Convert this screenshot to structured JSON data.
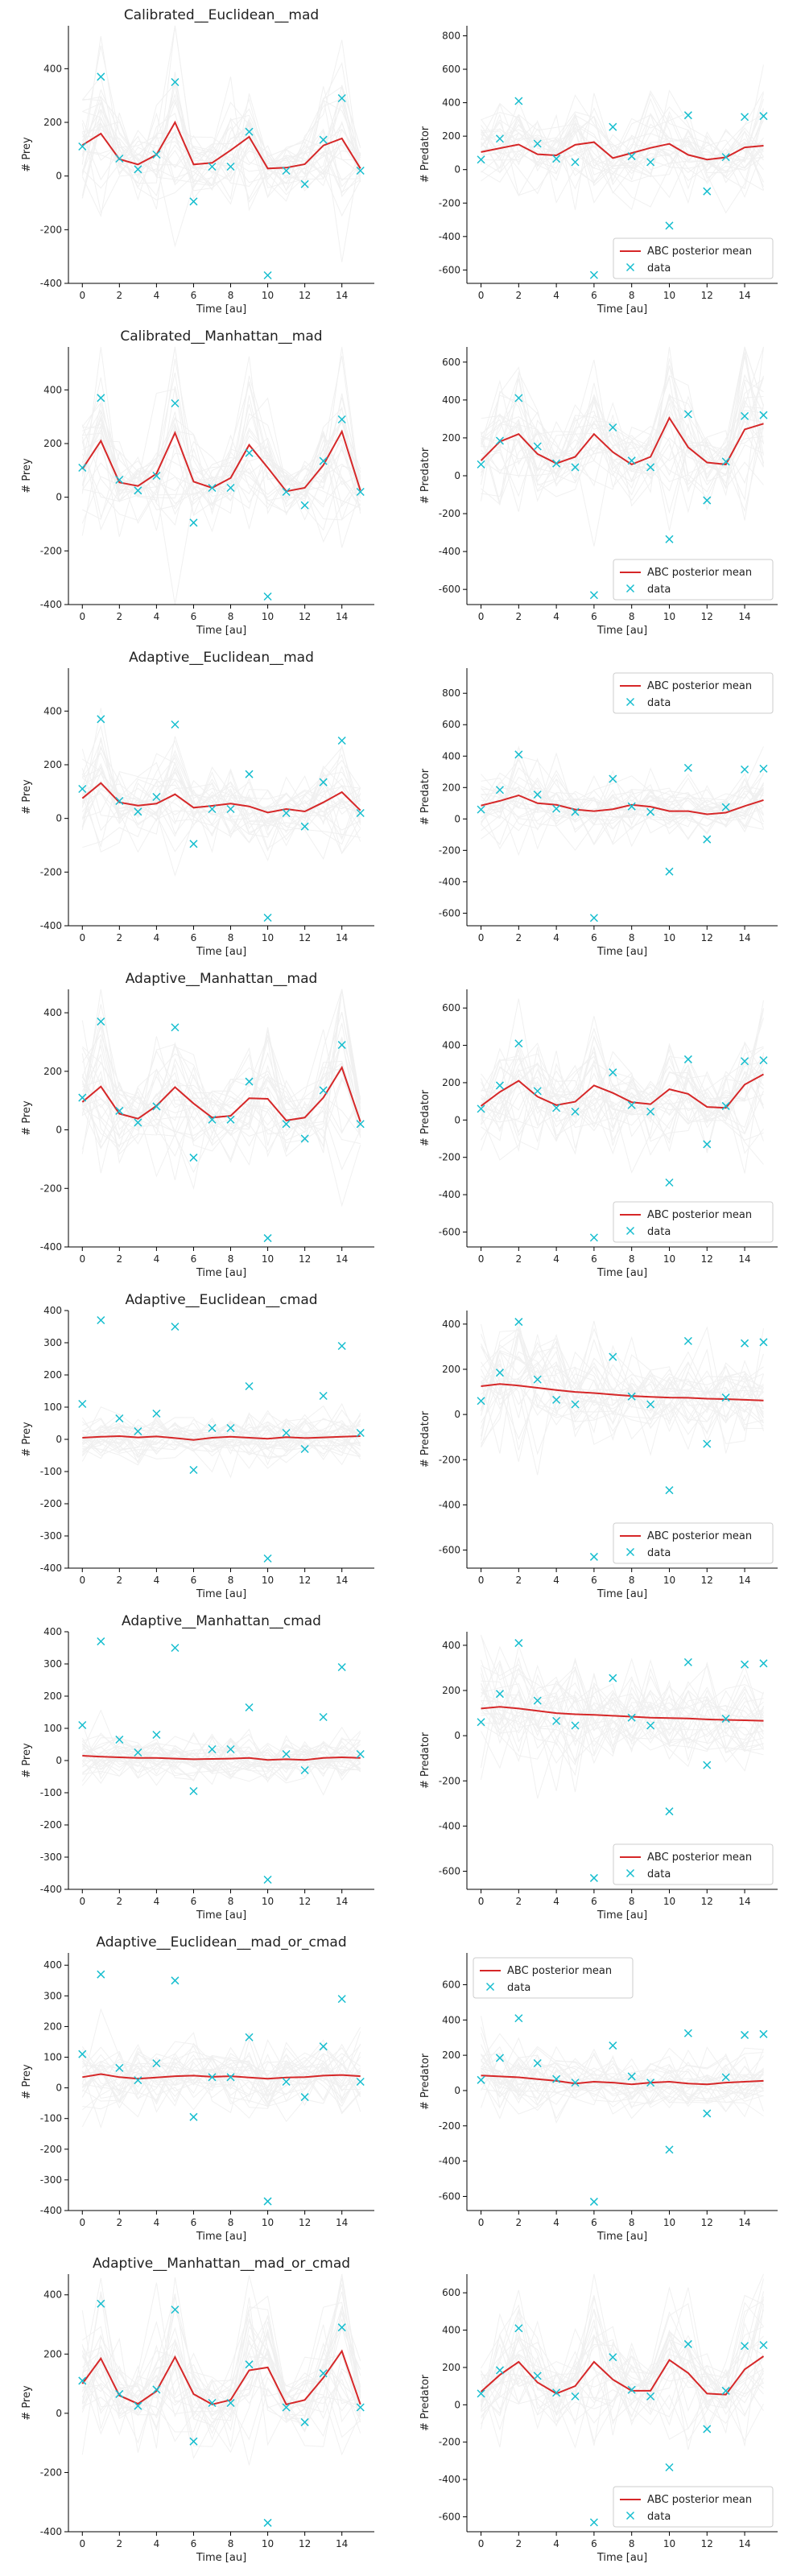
{
  "chart_data": [
    {
      "type": "line",
      "title": "Calibrated__Euclidean__mad",
      "xlabel": "Time [au]",
      "ylabel": "# Prey",
      "xlim": [
        -0.75,
        15.75
      ],
      "ylim": [
        -400,
        560
      ],
      "yticks": [
        -400,
        -200,
        0,
        200,
        400
      ],
      "xticks": [
        0,
        2,
        4,
        6,
        8,
        10,
        12,
        14
      ],
      "legend": "none",
      "posterior_mean": [
        115,
        158,
        63,
        43,
        79,
        200,
        43,
        49,
        96,
        146,
        28,
        31,
        44,
        114,
        140,
        28
      ]
    },
    {
      "type": "line",
      "title": "",
      "xlabel": "Time [au]",
      "ylabel": "# Predator",
      "xlim": [
        -0.75,
        15.75
      ],
      "ylim": [
        -680,
        860
      ],
      "yticks": [
        -600,
        -400,
        -200,
        0,
        200,
        400,
        600,
        800
      ],
      "xticks": [
        0,
        2,
        4,
        6,
        8,
        10,
        12,
        14
      ],
      "legend": "lower-right",
      "posterior_mean": [
        105,
        128,
        150,
        92,
        85,
        148,
        164,
        69,
        99,
        130,
        154,
        88,
        60,
        73,
        133,
        143
      ]
    },
    {
      "type": "line",
      "title": "Calibrated__Manhattan__mad",
      "xlabel": "Time [au]",
      "ylabel": "# Prey",
      "xlim": [
        -0.75,
        15.75
      ],
      "ylim": [
        -400,
        560
      ],
      "yticks": [
        -400,
        -200,
        0,
        200,
        400
      ],
      "xticks": [
        0,
        2,
        4,
        6,
        8,
        10,
        12,
        14
      ],
      "legend": "none",
      "posterior_mean": [
        105,
        210,
        55,
        42,
        88,
        240,
        58,
        35,
        72,
        195,
        110,
        22,
        35,
        120,
        245,
        25
      ]
    },
    {
      "type": "line",
      "title": "",
      "xlabel": "Time [au]",
      "ylabel": "# Predator",
      "xlim": [
        -0.75,
        15.75
      ],
      "ylim": [
        -680,
        680
      ],
      "yticks": [
        -600,
        -400,
        -200,
        0,
        200,
        400,
        600
      ],
      "xticks": [
        0,
        2,
        4,
        6,
        8,
        10,
        12,
        14
      ],
      "legend": "lower-right",
      "posterior_mean": [
        80,
        180,
        220,
        115,
        65,
        100,
        220,
        125,
        60,
        100,
        305,
        150,
        70,
        60,
        245,
        275
      ]
    },
    {
      "type": "line",
      "title": "Adaptive__Euclidean__mad",
      "xlabel": "Time [au]",
      "ylabel": "# Prey",
      "xlim": [
        -0.75,
        15.75
      ],
      "ylim": [
        -400,
        560
      ],
      "yticks": [
        -400,
        -200,
        0,
        200,
        400
      ],
      "xticks": [
        0,
        2,
        4,
        6,
        8,
        10,
        12,
        14
      ],
      "legend": "none",
      "posterior_mean": [
        75,
        132,
        60,
        48,
        55,
        90,
        40,
        47,
        55,
        45,
        22,
        35,
        26,
        60,
        98,
        30
      ]
    },
    {
      "type": "line",
      "title": "",
      "xlabel": "Time [au]",
      "ylabel": "# Predator",
      "xlim": [
        -0.75,
        15.75
      ],
      "ylim": [
        -680,
        960
      ],
      "yticks": [
        -600,
        -400,
        -200,
        0,
        200,
        400,
        600,
        800
      ],
      "xticks": [
        0,
        2,
        4,
        6,
        8,
        10,
        12,
        14
      ],
      "legend": "upper-right",
      "posterior_mean": [
        85,
        115,
        150,
        100,
        90,
        60,
        50,
        62,
        90,
        78,
        50,
        50,
        30,
        40,
        82,
        120
      ]
    },
    {
      "type": "line",
      "title": "Adaptive__Manhattan__mad",
      "xlabel": "Time [au]",
      "ylabel": "# Prey",
      "xlim": [
        -0.75,
        15.75
      ],
      "ylim": [
        -400,
        480
      ],
      "yticks": [
        -400,
        -200,
        0,
        200,
        400
      ],
      "xticks": [
        0,
        2,
        4,
        6,
        8,
        10,
        12,
        14
      ],
      "legend": "none",
      "posterior_mean": [
        95,
        148,
        55,
        38,
        82,
        146,
        90,
        42,
        48,
        108,
        106,
        32,
        42,
        110,
        213,
        28
      ]
    },
    {
      "type": "line",
      "title": "",
      "xlabel": "Time [au]",
      "ylabel": "# Predator",
      "xlim": [
        -0.75,
        15.75
      ],
      "ylim": [
        -680,
        700
      ],
      "yticks": [
        -600,
        -400,
        -200,
        0,
        200,
        400,
        600
      ],
      "xticks": [
        0,
        2,
        4,
        6,
        8,
        10,
        12,
        14
      ],
      "legend": "lower-right",
      "posterior_mean": [
        75,
        150,
        210,
        125,
        80,
        98,
        185,
        145,
        95,
        85,
        165,
        140,
        70,
        65,
        190,
        245
      ]
    },
    {
      "type": "line",
      "title": "Adaptive__Euclidean__cmad",
      "xlabel": "Time [au]",
      "ylabel": "# Prey",
      "xlim": [
        -0.75,
        15.75
      ],
      "ylim": [
        -400,
        400
      ],
      "yticks": [
        -400,
        -300,
        -200,
        -100,
        0,
        100,
        200,
        300,
        400
      ],
      "xticks": [
        0,
        2,
        4,
        6,
        8,
        10,
        12,
        14
      ],
      "legend": "none",
      "posterior_mean": [
        5,
        8,
        10,
        6,
        9,
        4,
        -2,
        5,
        8,
        5,
        2,
        7,
        4,
        6,
        8,
        10
      ]
    },
    {
      "type": "line",
      "title": "",
      "xlabel": "Time [au]",
      "ylabel": "# Predator",
      "xlim": [
        -0.75,
        15.75
      ],
      "ylim": [
        -680,
        460
      ],
      "yticks": [
        -600,
        -400,
        -200,
        0,
        200,
        400
      ],
      "xticks": [
        0,
        2,
        4,
        6,
        8,
        10,
        12,
        14
      ],
      "legend": "lower-right",
      "posterior_mean": [
        125,
        135,
        128,
        118,
        108,
        100,
        95,
        88,
        82,
        78,
        75,
        74,
        70,
        68,
        65,
        62
      ]
    },
    {
      "type": "line",
      "title": "Adaptive__Manhattan__cmad",
      "xlabel": "Time [au]",
      "ylabel": "# Prey",
      "xlim": [
        -0.75,
        15.75
      ],
      "ylim": [
        -400,
        400
      ],
      "yticks": [
        -400,
        -300,
        -200,
        -100,
        0,
        100,
        200,
        300,
        400
      ],
      "xticks": [
        0,
        2,
        4,
        6,
        8,
        10,
        12,
        14
      ],
      "legend": "none",
      "posterior_mean": [
        15,
        12,
        10,
        8,
        8,
        6,
        4,
        5,
        6,
        8,
        2,
        4,
        2,
        8,
        10,
        8
      ]
    },
    {
      "type": "line",
      "title": "",
      "xlabel": "Time [au]",
      "ylabel": "# Predator",
      "xlim": [
        -0.75,
        15.75
      ],
      "ylim": [
        -680,
        460
      ],
      "yticks": [
        -600,
        -400,
        -200,
        0,
        200,
        400
      ],
      "xticks": [
        0,
        2,
        4,
        6,
        8,
        10,
        12,
        14
      ],
      "legend": "lower-right",
      "posterior_mean": [
        120,
        128,
        120,
        110,
        100,
        95,
        92,
        88,
        84,
        80,
        78,
        76,
        72,
        70,
        68,
        66
      ]
    },
    {
      "type": "line",
      "title": "Adaptive__Euclidean__mad_or_cmad",
      "xlabel": "Time [au]",
      "ylabel": "# Prey",
      "xlim": [
        -0.75,
        15.75
      ],
      "ylim": [
        -400,
        440
      ],
      "yticks": [
        -400,
        -300,
        -200,
        -100,
        0,
        100,
        200,
        300,
        400
      ],
      "xticks": [
        0,
        2,
        4,
        6,
        8,
        10,
        12,
        14
      ],
      "legend": "none",
      "posterior_mean": [
        35,
        45,
        35,
        30,
        34,
        38,
        40,
        36,
        38,
        34,
        30,
        34,
        35,
        40,
        42,
        38
      ]
    },
    {
      "type": "line",
      "title": "",
      "xlabel": "Time [au]",
      "ylabel": "# Predator",
      "xlim": [
        -0.75,
        15.75
      ],
      "ylim": [
        -680,
        780
      ],
      "yticks": [
        -600,
        -400,
        -200,
        0,
        200,
        400,
        600
      ],
      "xticks": [
        0,
        2,
        4,
        6,
        8,
        10,
        12,
        14
      ],
      "legend": "upper-left",
      "posterior_mean": [
        85,
        80,
        75,
        65,
        55,
        40,
        50,
        45,
        35,
        45,
        50,
        40,
        35,
        45,
        50,
        55
      ]
    },
    {
      "type": "line",
      "title": "Adaptive__Manhattan__mad_or_cmad",
      "xlabel": "Time [au]",
      "ylabel": "# Prey",
      "xlim": [
        -0.75,
        15.75
      ],
      "ylim": [
        -400,
        470
      ],
      "yticks": [
        -400,
        -200,
        0,
        200,
        400
      ],
      "xticks": [
        0,
        2,
        4,
        6,
        8,
        10,
        12,
        14
      ],
      "legend": "none",
      "posterior_mean": [
        100,
        185,
        60,
        32,
        75,
        190,
        65,
        30,
        45,
        145,
        155,
        30,
        45,
        120,
        210,
        30
      ]
    },
    {
      "type": "line",
      "title": "",
      "xlabel": "Time [au]",
      "ylabel": "# Predator",
      "xlim": [
        -0.75,
        15.75
      ],
      "ylim": [
        -680,
        700
      ],
      "yticks": [
        -600,
        -400,
        -200,
        0,
        200,
        400,
        600
      ],
      "xticks": [
        0,
        2,
        4,
        6,
        8,
        10,
        12,
        14
      ],
      "legend": "lower-right",
      "posterior_mean": [
        70,
        160,
        230,
        120,
        60,
        100,
        230,
        135,
        75,
        75,
        240,
        170,
        60,
        55,
        190,
        260
      ]
    }
  ],
  "data_prey": [
    110,
    370,
    65,
    25,
    80,
    350,
    -95,
    35,
    35,
    165,
    -370,
    20,
    -30,
    135,
    290,
    20
  ],
  "data_predator": [
    60,
    185,
    410,
    155,
    65,
    45,
    -630,
    255,
    80,
    45,
    -335,
    325,
    -130,
    75,
    315,
    320
  ],
  "legend": {
    "mean_label": "ABC posterior mean",
    "data_label": "data"
  },
  "colors": {
    "mean": "#d62728",
    "data": "#17becf",
    "samples": "#bfbfbf"
  }
}
